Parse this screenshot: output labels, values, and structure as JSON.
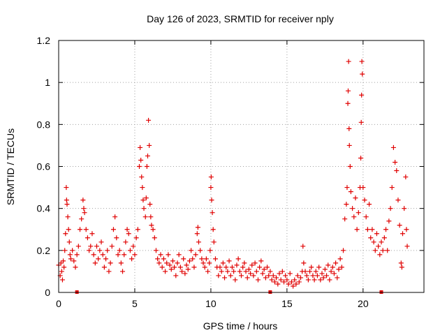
{
  "chart_data": {
    "type": "scatter",
    "title": "Day 126 of 2023, SRMTID for receiver nply",
    "xlabel": "GPS time / hours",
    "ylabel": "SRMTID / TECUs",
    "xlim": [
      0,
      24
    ],
    "ylim": [
      0,
      1.2
    ],
    "x_ticks": [
      0,
      5,
      10,
      15,
      20
    ],
    "x_tick_labels": [
      "0",
      "5",
      "10",
      "15",
      "20"
    ],
    "y_ticks": [
      0,
      0.2,
      0.4,
      0.6,
      0.8,
      1.0,
      1.2
    ],
    "y_tick_labels": [
      "0",
      "0.2",
      "0.4",
      "0.6",
      "0.8",
      "1",
      "1.2"
    ],
    "grid": true,
    "marker": "plus",
    "color": "#e00000",
    "gap_markers": [
      1.2,
      13.9,
      21.2
    ],
    "series": [
      {
        "name": "SRMTID",
        "points": [
          [
            0.0,
            0.13
          ],
          [
            0.1,
            0.08
          ],
          [
            0.15,
            0.14
          ],
          [
            0.2,
            0.1
          ],
          [
            0.25,
            0.06
          ],
          [
            0.3,
            0.15
          ],
          [
            0.35,
            0.12
          ],
          [
            0.4,
            0.2
          ],
          [
            0.45,
            0.28
          ],
          [
            0.5,
            0.5
          ],
          [
            0.52,
            0.44
          ],
          [
            0.55,
            0.42
          ],
          [
            0.6,
            0.36
          ],
          [
            0.65,
            0.3
          ],
          [
            0.7,
            0.24
          ],
          [
            0.75,
            0.18
          ],
          [
            0.8,
            0.16
          ],
          [
            0.9,
            0.2
          ],
          [
            1.0,
            0.15
          ],
          [
            1.1,
            0.12
          ],
          [
            1.2,
            0.18
          ],
          [
            1.3,
            0.22
          ],
          [
            1.4,
            0.3
          ],
          [
            1.5,
            0.35
          ],
          [
            1.6,
            0.44
          ],
          [
            1.65,
            0.4
          ],
          [
            1.7,
            0.38
          ],
          [
            1.8,
            0.3
          ],
          [
            1.9,
            0.26
          ],
          [
            2.0,
            0.2
          ],
          [
            2.1,
            0.22
          ],
          [
            2.2,
            0.28
          ],
          [
            2.3,
            0.18
          ],
          [
            2.4,
            0.14
          ],
          [
            2.5,
            0.22
          ],
          [
            2.6,
            0.16
          ],
          [
            2.7,
            0.2
          ],
          [
            2.8,
            0.24
          ],
          [
            2.9,
            0.18
          ],
          [
            3.0,
            0.12
          ],
          [
            3.1,
            0.16
          ],
          [
            3.2,
            0.2
          ],
          [
            3.3,
            0.1
          ],
          [
            3.4,
            0.14
          ],
          [
            3.5,
            0.22
          ],
          [
            3.6,
            0.3
          ],
          [
            3.7,
            0.36
          ],
          [
            3.8,
            0.26
          ],
          [
            3.9,
            0.18
          ],
          [
            4.0,
            0.2
          ],
          [
            4.1,
            0.14
          ],
          [
            4.2,
            0.1
          ],
          [
            4.3,
            0.18
          ],
          [
            4.4,
            0.24
          ],
          [
            4.5,
            0.3
          ],
          [
            4.6,
            0.28
          ],
          [
            4.7,
            0.2
          ],
          [
            4.8,
            0.16
          ],
          [
            4.9,
            0.22
          ],
          [
            5.0,
            0.18
          ],
          [
            5.1,
            0.26
          ],
          [
            5.2,
            0.3
          ],
          [
            5.3,
            0.6
          ],
          [
            5.35,
            0.69
          ],
          [
            5.4,
            0.63
          ],
          [
            5.45,
            0.55
          ],
          [
            5.5,
            0.5
          ],
          [
            5.55,
            0.44
          ],
          [
            5.6,
            0.4
          ],
          [
            5.7,
            0.36
          ],
          [
            5.75,
            0.45
          ],
          [
            5.8,
            0.6
          ],
          [
            5.85,
            0.65
          ],
          [
            5.9,
            0.82
          ],
          [
            5.95,
            0.7
          ],
          [
            6.0,
            0.42
          ],
          [
            6.05,
            0.36
          ],
          [
            6.1,
            0.32
          ],
          [
            6.2,
            0.3
          ],
          [
            6.3,
            0.26
          ],
          [
            6.4,
            0.2
          ],
          [
            6.5,
            0.16
          ],
          [
            6.6,
            0.14
          ],
          [
            6.7,
            0.18
          ],
          [
            6.8,
            0.12
          ],
          [
            6.9,
            0.16
          ],
          [
            7.0,
            0.1
          ],
          [
            7.1,
            0.14
          ],
          [
            7.2,
            0.18
          ],
          [
            7.3,
            0.13
          ],
          [
            7.4,
            0.11
          ],
          [
            7.5,
            0.15
          ],
          [
            7.6,
            0.12
          ],
          [
            7.7,
            0.08
          ],
          [
            7.8,
            0.14
          ],
          [
            7.9,
            0.18
          ],
          [
            8.0,
            0.12
          ],
          [
            8.1,
            0.1
          ],
          [
            8.2,
            0.16
          ],
          [
            8.3,
            0.09
          ],
          [
            8.4,
            0.13
          ],
          [
            8.5,
            0.11
          ],
          [
            8.6,
            0.15
          ],
          [
            8.7,
            0.2
          ],
          [
            8.8,
            0.16
          ],
          [
            8.9,
            0.12
          ],
          [
            9.0,
            0.18
          ],
          [
            9.1,
            0.28
          ],
          [
            9.15,
            0.31
          ],
          [
            9.2,
            0.24
          ],
          [
            9.3,
            0.2
          ],
          [
            9.4,
            0.16
          ],
          [
            9.5,
            0.14
          ],
          [
            9.6,
            0.12
          ],
          [
            9.7,
            0.16
          ],
          [
            9.8,
            0.1
          ],
          [
            9.9,
            0.14
          ],
          [
            9.95,
            0.2
          ],
          [
            10.0,
            0.5
          ],
          [
            10.02,
            0.55
          ],
          [
            10.05,
            0.44
          ],
          [
            10.1,
            0.38
          ],
          [
            10.15,
            0.3
          ],
          [
            10.2,
            0.24
          ],
          [
            10.3,
            0.16
          ],
          [
            10.4,
            0.12
          ],
          [
            10.5,
            0.08
          ],
          [
            10.6,
            0.12
          ],
          [
            10.7,
            0.1
          ],
          [
            10.8,
            0.14
          ],
          [
            10.9,
            0.07
          ],
          [
            11.0,
            0.12
          ],
          [
            11.1,
            0.1
          ],
          [
            11.2,
            0.15
          ],
          [
            11.3,
            0.08
          ],
          [
            11.4,
            0.12
          ],
          [
            11.5,
            0.1
          ],
          [
            11.6,
            0.06
          ],
          [
            11.7,
            0.13
          ],
          [
            11.8,
            0.16
          ],
          [
            11.9,
            0.1
          ],
          [
            12.0,
            0.08
          ],
          [
            12.1,
            0.12
          ],
          [
            12.2,
            0.14
          ],
          [
            12.3,
            0.1
          ],
          [
            12.4,
            0.07
          ],
          [
            12.5,
            0.11
          ],
          [
            12.6,
            0.09
          ],
          [
            12.7,
            0.13
          ],
          [
            12.8,
            0.08
          ],
          [
            12.9,
            0.14
          ],
          [
            13.0,
            0.1
          ],
          [
            13.1,
            0.06
          ],
          [
            13.2,
            0.12
          ],
          [
            13.3,
            0.15
          ],
          [
            13.4,
            0.09
          ],
          [
            13.5,
            0.11
          ],
          [
            13.6,
            0.07
          ],
          [
            13.7,
            0.12
          ],
          [
            13.8,
            0.08
          ],
          [
            13.9,
            0.1
          ],
          [
            14.0,
            0.06
          ],
          [
            14.1,
            0.08
          ],
          [
            14.2,
            0.05
          ],
          [
            14.3,
            0.07
          ],
          [
            14.4,
            0.04
          ],
          [
            14.5,
            0.09
          ],
          [
            14.6,
            0.06
          ],
          [
            14.7,
            0.1
          ],
          [
            14.8,
            0.05
          ],
          [
            14.9,
            0.08
          ],
          [
            15.0,
            0.06
          ],
          [
            15.1,
            0.04
          ],
          [
            15.2,
            0.09
          ],
          [
            15.3,
            0.05
          ],
          [
            15.4,
            0.03
          ],
          [
            15.5,
            0.06
          ],
          [
            15.6,
            0.04
          ],
          [
            15.7,
            0.08
          ],
          [
            15.8,
            0.05
          ],
          [
            15.9,
            0.07
          ],
          [
            16.0,
            0.1
          ],
          [
            16.05,
            0.22
          ],
          [
            16.1,
            0.14
          ],
          [
            16.2,
            0.1
          ],
          [
            16.3,
            0.08
          ],
          [
            16.4,
            0.06
          ],
          [
            16.5,
            0.1
          ],
          [
            16.6,
            0.12
          ],
          [
            16.7,
            0.08
          ],
          [
            16.8,
            0.06
          ],
          [
            16.9,
            0.1
          ],
          [
            17.0,
            0.08
          ],
          [
            17.1,
            0.12
          ],
          [
            17.2,
            0.06
          ],
          [
            17.3,
            0.09
          ],
          [
            17.4,
            0.07
          ],
          [
            17.5,
            0.11
          ],
          [
            17.6,
            0.08
          ],
          [
            17.7,
            0.13
          ],
          [
            17.8,
            0.06
          ],
          [
            17.9,
            0.1
          ],
          [
            18.0,
            0.12
          ],
          [
            18.1,
            0.09
          ],
          [
            18.2,
            0.14
          ],
          [
            18.3,
            0.07
          ],
          [
            18.4,
            0.11
          ],
          [
            18.5,
            0.16
          ],
          [
            18.6,
            0.12
          ],
          [
            18.7,
            0.2
          ],
          [
            18.8,
            0.35
          ],
          [
            18.9,
            0.42
          ],
          [
            18.95,
            0.5
          ],
          [
            19.0,
            0.9
          ],
          [
            19.02,
            0.96
          ],
          [
            19.05,
            1.1
          ],
          [
            19.08,
            0.78
          ],
          [
            19.1,
            0.7
          ],
          [
            19.15,
            0.6
          ],
          [
            19.2,
            0.48
          ],
          [
            19.3,
            0.4
          ],
          [
            19.4,
            0.36
          ],
          [
            19.5,
            0.45
          ],
          [
            19.6,
            0.3
          ],
          [
            19.7,
            0.38
          ],
          [
            19.8,
            0.5
          ],
          [
            19.85,
            0.64
          ],
          [
            19.88,
            0.81
          ],
          [
            19.9,
            0.94
          ],
          [
            19.92,
            1.1
          ],
          [
            19.95,
            1.04
          ],
          [
            20.0,
            0.5
          ],
          [
            20.1,
            0.44
          ],
          [
            20.2,
            0.36
          ],
          [
            20.3,
            0.3
          ],
          [
            20.4,
            0.42
          ],
          [
            20.5,
            0.26
          ],
          [
            20.6,
            0.3
          ],
          [
            20.7,
            0.24
          ],
          [
            20.8,
            0.2
          ],
          [
            20.9,
            0.28
          ],
          [
            21.0,
            0.22
          ],
          [
            21.1,
            0.18
          ],
          [
            21.2,
            0.24
          ],
          [
            21.3,
            0.2
          ],
          [
            21.4,
            0.26
          ],
          [
            21.5,
            0.3
          ],
          [
            21.6,
            0.2
          ],
          [
            21.7,
            0.34
          ],
          [
            21.8,
            0.4
          ],
          [
            21.9,
            0.5
          ],
          [
            22.0,
            0.69
          ],
          [
            22.1,
            0.62
          ],
          [
            22.2,
            0.58
          ],
          [
            22.3,
            0.44
          ],
          [
            22.4,
            0.32
          ],
          [
            22.5,
            0.14
          ],
          [
            22.55,
            0.12
          ],
          [
            22.6,
            0.28
          ],
          [
            22.7,
            0.4
          ],
          [
            22.8,
            0.55
          ],
          [
            22.85,
            0.3
          ],
          [
            22.9,
            0.22
          ]
        ]
      }
    ]
  }
}
